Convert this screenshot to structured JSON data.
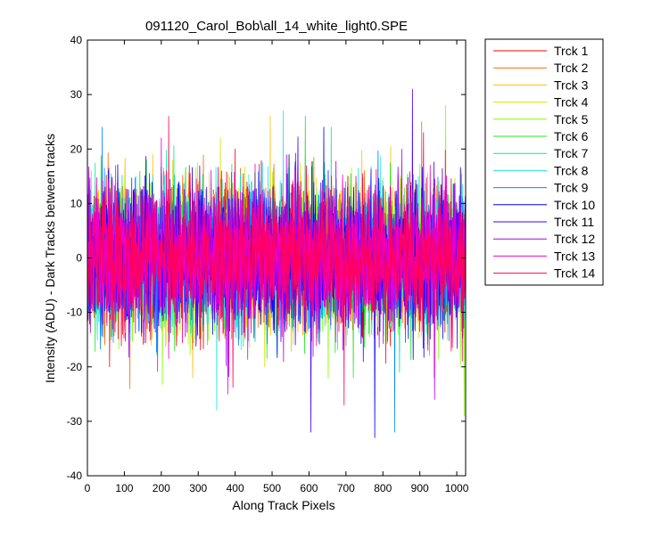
{
  "chart_data": {
    "type": "line",
    "title": "091120_Carol_Bob\\all_14_white_light0.SPE",
    "xlabel": "Along Track Pixels",
    "ylabel": "Intensity (ADU) - Dark Tracks between tracks",
    "xlim": [
      0,
      1024
    ],
    "ylim": [
      -40,
      40
    ],
    "xticks": [
      0,
      100,
      200,
      300,
      400,
      500,
      600,
      700,
      800,
      900,
      1000
    ],
    "yticks": [
      -40,
      -30,
      -20,
      -10,
      0,
      10,
      20,
      30,
      40
    ],
    "grid": false,
    "legend_position": "outside-top-right",
    "n_points": 1024,
    "noise_description": "zero-mean noise, typical amplitude about ±10 ADU, extremes about -33 to +31 ADU",
    "series": [
      {
        "name": "Trck 1",
        "color": "#ff0000",
        "min": -20,
        "max": 20,
        "extreme_min_x": 60,
        "extreme_max_x": 400
      },
      {
        "name": "Trck 2",
        "color": "#ff6a00",
        "min": -24,
        "max": 25,
        "extreme_min_x": 115,
        "extreme_max_x": 905
      },
      {
        "name": "Trck 3",
        "color": "#ffc000",
        "min": -22,
        "max": 26,
        "extreme_min_x": 285,
        "extreme_max_x": 495
      },
      {
        "name": "Trck 4",
        "color": "#d4e600",
        "min": -20,
        "max": 22,
        "extreme_min_x": 480,
        "extreme_max_x": 360
      },
      {
        "name": "Trck 5",
        "color": "#80ff00",
        "min": -29,
        "max": 28,
        "extreme_min_x": 1020,
        "extreme_max_x": 970
      },
      {
        "name": "Trck 6",
        "color": "#22e322",
        "min": -22,
        "max": 26,
        "extreme_min_x": 720,
        "extreme_max_x": 590
      },
      {
        "name": "Trck 7",
        "color": "#00e8a0",
        "min": -21,
        "max": 24,
        "extreme_min_x": 845,
        "extreme_max_x": 660
      },
      {
        "name": "Trck 8",
        "color": "#22e6e6",
        "min": -28,
        "max": 27,
        "extreme_min_x": 350,
        "extreme_max_x": 530
      },
      {
        "name": "Trck 9",
        "color": "#0088ff",
        "min": -32,
        "max": 24,
        "extreme_min_x": 832,
        "extreme_max_x": 40
      },
      {
        "name": "Trck 10",
        "color": "#0000ff",
        "min": -33,
        "max": 24,
        "extreme_min_x": 778,
        "extreme_max_x": 640
      },
      {
        "name": "Trck 11",
        "color": "#4400ff",
        "min": -32,
        "max": 31,
        "extreme_min_x": 605,
        "extreme_max_x": 880
      },
      {
        "name": "Trck 12",
        "color": "#aa00ee",
        "min": -26,
        "max": 23,
        "extreme_min_x": 940,
        "extreme_max_x": 910
      },
      {
        "name": "Trck 13",
        "color": "#ee00cc",
        "min": -25,
        "max": 22,
        "extreme_min_x": 380,
        "extreme_max_x": 200
      },
      {
        "name": "Trck 14",
        "color": "#ff0060",
        "min": -27,
        "max": 26,
        "extreme_min_x": 695,
        "extreme_max_x": 220
      }
    ]
  }
}
